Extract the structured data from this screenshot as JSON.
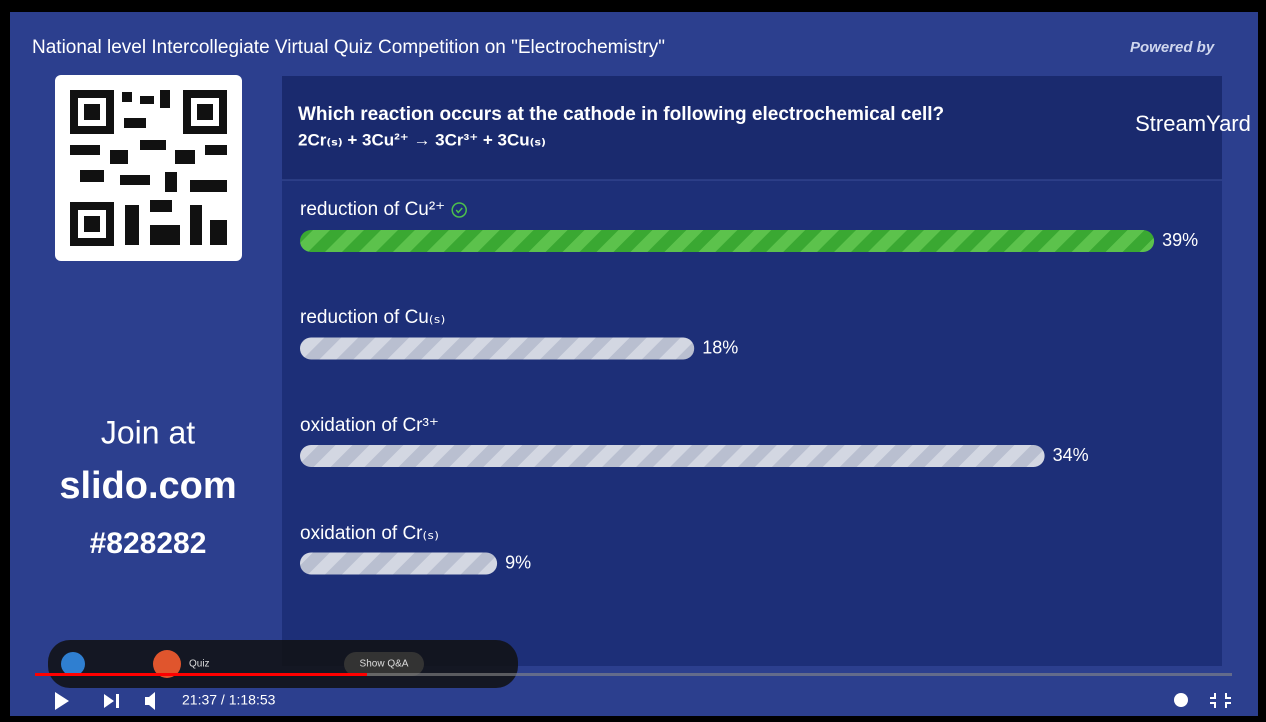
{
  "video": {
    "title": "National level Intercollegiate Virtual Quiz Competition on \"Electrochemistry\"",
    "time": "21:37 / 1:18:53"
  },
  "overlay": {
    "powered_by": "Powered by",
    "brand": "StreamYard"
  },
  "slido": {
    "join": "Join at",
    "site": "slido.com",
    "code": "#828282",
    "question": "Which reaction occurs at the cathode in following electrochemical cell?",
    "equation": "2Cr₍ₛ₎ + 3Cu²⁺ → 3Cr³⁺ + 3Cu₍ₛ₎",
    "options": [
      {
        "label": "reduction of Cu²⁺",
        "value": 39,
        "value_label": "39%",
        "correct": true
      },
      {
        "label": "reduction of Cu₍ₛ₎",
        "value": 18,
        "value_label": "18%",
        "correct": false
      },
      {
        "label": "oxidation of Cr³⁺",
        "value": 34,
        "value_label": "34%",
        "correct": false
      },
      {
        "label": "oxidation of Cr₍ₛ₎",
        "value": 9,
        "value_label": "9%",
        "correct": false
      }
    ],
    "toolbar": {
      "quiz": "Quiz",
      "show_qa": "Show Q&A"
    }
  }
}
